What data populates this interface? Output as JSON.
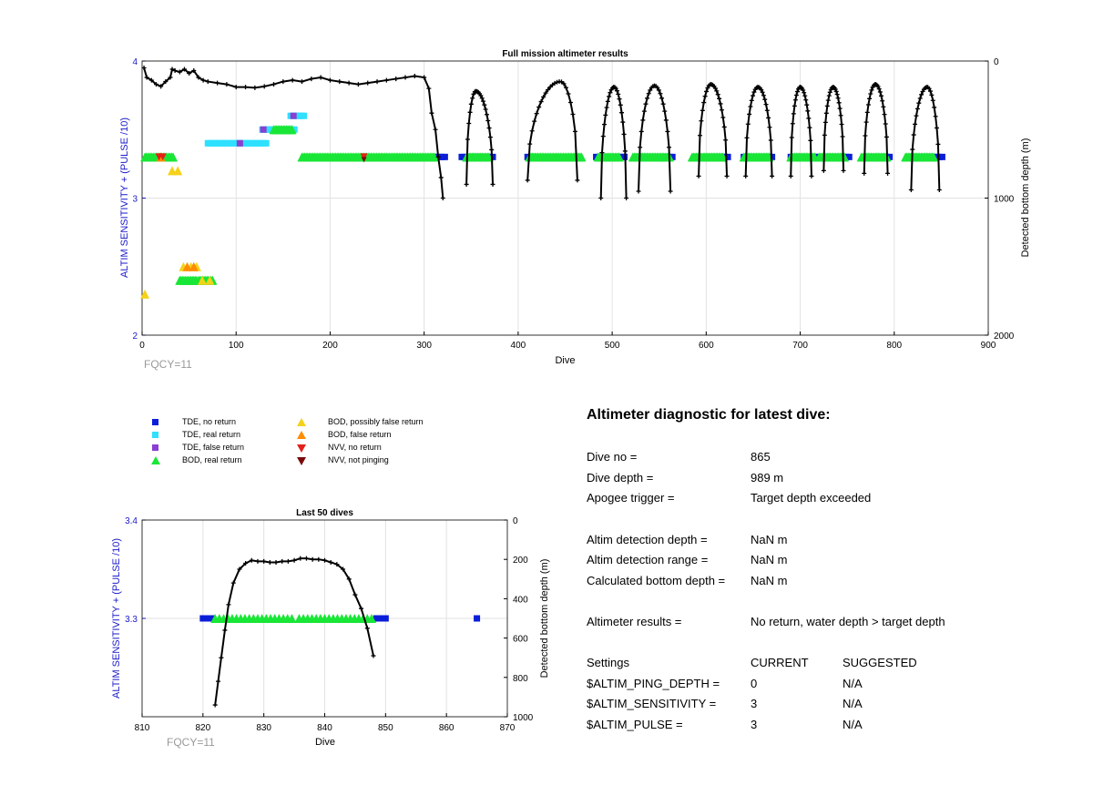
{
  "colors": {
    "tde_no_return": "#0a1ed8",
    "tde_real_return": "#2fe0ff",
    "tde_false_return": "#8a3fd1",
    "bod_real_return": "#19e636",
    "bod_possibly_false": "#f5d21a",
    "bod_false_return": "#ff8c00",
    "nvv_no_return": "#e32118",
    "nvv_not_pinging": "#7a0a0a",
    "depth_line": "#000000",
    "left_axis": "#1a1ac8"
  },
  "chart_data": [
    {
      "id": "full_mission",
      "type": "scatter",
      "title": "Full mission altimeter results",
      "xlabel": "Dive",
      "ylabel_left": "ALTIM SENSITIVITY + (PULSE /10)",
      "ylabel_right": "Detected bottom depth (m)",
      "xlim": [
        0,
        900
      ],
      "ylim_left": [
        2,
        4
      ],
      "ylim_right_reversed": [
        0,
        2000
      ],
      "xticks": [
        "0",
        "100",
        "200",
        "300",
        "400",
        "500",
        "600",
        "700",
        "800",
        "900"
      ],
      "yticks_left": [
        "2",
        "3",
        "4"
      ],
      "yticks_right": [
        "0",
        "1000",
        "2000"
      ],
      "grid": true,
      "annotation": "FQCY=11",
      "tde_no_return_ranges": [
        [
          310,
          323
        ],
        [
          340,
          373
        ],
        [
          410,
          418
        ],
        [
          483,
          514
        ],
        [
          525,
          566
        ],
        [
          590,
          623
        ],
        [
          640,
          672
        ],
        [
          690,
          720
        ],
        [
          725,
          752
        ],
        [
          768,
          796
        ],
        [
          815,
          851
        ]
      ],
      "tde_real_return_segments": [
        {
          "y": 3.4,
          "x": [
            70,
            133
          ]
        },
        {
          "y": 3.5,
          "x": [
            128,
            162
          ]
        },
        {
          "y": 3.6,
          "x": [
            158,
            172
          ]
        }
      ],
      "tde_false_return_points": [
        [
          104,
          3.4
        ],
        [
          129,
          3.5
        ],
        [
          161,
          3.6
        ]
      ],
      "bod_real_return_segments": [
        {
          "y": 3.3,
          "x": [
            3,
            33
          ]
        },
        {
          "y": 3.3,
          "x": [
            170,
            312
          ]
        },
        {
          "y": 3.3,
          "x": [
            345,
            370
          ]
        },
        {
          "y": 3.3,
          "x": [
            412,
            468
          ]
        },
        {
          "y": 3.3,
          "x": [
            485,
            508
          ]
        },
        {
          "y": 3.3,
          "x": [
            522,
            562
          ]
        },
        {
          "y": 3.3,
          "x": [
            585,
            618
          ]
        },
        {
          "y": 3.3,
          "x": [
            640,
            668
          ]
        },
        {
          "y": 3.3,
          "x": [
            690,
            716
          ]
        },
        {
          "y": 3.3,
          "x": [
            720,
            748
          ]
        },
        {
          "y": 3.3,
          "x": [
            765,
            792
          ]
        },
        {
          "y": 3.3,
          "x": [
            812,
            843
          ]
        },
        {
          "y": 3.5,
          "x": [
            140,
            160
          ]
        },
        {
          "y": 2.4,
          "x": [
            40,
            58
          ]
        },
        {
          "y": 2.4,
          "x": [
            60,
            76
          ]
        }
      ],
      "bod_possibly_false_points": [
        [
          3,
          2.3
        ],
        [
          32,
          3.2
        ],
        [
          38,
          3.2
        ],
        [
          44,
          2.5
        ],
        [
          52,
          2.5
        ],
        [
          58,
          2.5
        ],
        [
          64,
          2.4
        ],
        [
          72,
          2.4
        ]
      ],
      "bod_false_return_points": [
        [
          48,
          2.5
        ],
        [
          55,
          2.5
        ],
        [
          20,
          3.3
        ]
      ],
      "nvv_no_return_points": [
        [
          18,
          3.3
        ],
        [
          22,
          3.3
        ],
        [
          236,
          3.3
        ]
      ],
      "nvv_not_pinging_points": [
        [
          236,
          3.28
        ]
      ],
      "depth_series": {
        "name": "Detected bottom depth",
        "cruise": [
          [
            2,
            50
          ],
          [
            5,
            120
          ],
          [
            10,
            140
          ],
          [
            15,
            170
          ],
          [
            20,
            185
          ],
          [
            25,
            150
          ],
          [
            30,
            120
          ],
          [
            32,
            60
          ],
          [
            35,
            70
          ],
          [
            40,
            80
          ],
          [
            45,
            60
          ],
          [
            50,
            90
          ],
          [
            55,
            70
          ],
          [
            60,
            120
          ],
          [
            65,
            140
          ],
          [
            70,
            150
          ],
          [
            80,
            160
          ],
          [
            90,
            170
          ],
          [
            100,
            190
          ],
          [
            110,
            190
          ],
          [
            120,
            195
          ],
          [
            130,
            185
          ],
          [
            140,
            170
          ],
          [
            150,
            150
          ],
          [
            160,
            140
          ],
          [
            170,
            150
          ],
          [
            180,
            130
          ],
          [
            190,
            120
          ],
          [
            200,
            140
          ],
          [
            210,
            150
          ],
          [
            220,
            160
          ],
          [
            230,
            170
          ],
          [
            240,
            160
          ],
          [
            250,
            150
          ],
          [
            260,
            140
          ],
          [
            270,
            130
          ],
          [
            280,
            120
          ],
          [
            290,
            110
          ],
          [
            300,
            120
          ],
          [
            305,
            200
          ],
          [
            308,
            380
          ],
          [
            312,
            500
          ],
          [
            315,
            700
          ],
          [
            318,
            850
          ],
          [
            320,
            1000
          ]
        ],
        "dives": [
          {
            "start": 345,
            "peak": 355,
            "end": 373,
            "base": 900,
            "top": 220
          },
          {
            "start": 410,
            "peak": 445,
            "end": 463,
            "base": 870,
            "top": 150
          },
          {
            "start": 488,
            "peak": 502,
            "end": 515,
            "base": 1000,
            "top": 190
          },
          {
            "start": 528,
            "peak": 545,
            "end": 562,
            "base": 950,
            "top": 180
          },
          {
            "start": 592,
            "peak": 605,
            "end": 622,
            "base": 840,
            "top": 170
          },
          {
            "start": 642,
            "peak": 655,
            "end": 670,
            "base": 840,
            "top": 190
          },
          {
            "start": 690,
            "peak": 700,
            "end": 712,
            "base": 840,
            "top": 190
          },
          {
            "start": 725,
            "peak": 735,
            "end": 746,
            "base": 800,
            "top": 190
          },
          {
            "start": 768,
            "peak": 780,
            "end": 793,
            "base": 820,
            "top": 170
          },
          {
            "start": 818,
            "peak": 835,
            "end": 848,
            "base": 940,
            "top": 190
          }
        ]
      }
    },
    {
      "id": "last_50",
      "type": "scatter",
      "title": "Last 50 dives",
      "xlabel": "Dive",
      "ylabel_left": "ALTIM SENSITIVITY + (PULSE /10)",
      "ylabel_right": "Detected bottom depth (m)",
      "xlim": [
        810,
        870
      ],
      "ylim_left": [
        3.2,
        3.4
      ],
      "ylim_right_reversed": [
        0,
        1000
      ],
      "xticks": [
        "810",
        "820",
        "830",
        "840",
        "850",
        "860",
        "870"
      ],
      "yticks_left": [
        "3.4",
        "3.3"
      ],
      "yticks_left_values": [
        3.4,
        3.3
      ],
      "yticks_right": [
        "0",
        "200",
        "400",
        "600",
        "800",
        "1000"
      ],
      "grid": true,
      "annotation": "FQCY=11",
      "tde_no_return_points": [
        [
          820,
          3.3
        ],
        [
          820.5,
          3.3
        ],
        [
          821,
          3.3
        ],
        [
          821.5,
          3.3
        ],
        [
          848.5,
          3.3
        ],
        [
          849,
          3.3
        ],
        [
          849.5,
          3.3
        ],
        [
          850,
          3.3
        ],
        [
          865,
          3.3
        ]
      ],
      "bod_real_return_points": [
        [
          822,
          3.3
        ],
        [
          822.7,
          3.3
        ],
        [
          823.4,
          3.3
        ],
        [
          824.1,
          3.3
        ],
        [
          824.8,
          3.3
        ],
        [
          825.5,
          3.3
        ],
        [
          826.2,
          3.3
        ],
        [
          826.9,
          3.3
        ],
        [
          827.6,
          3.3
        ],
        [
          828.3,
          3.3
        ],
        [
          829,
          3.3
        ],
        [
          829.7,
          3.3
        ],
        [
          830.4,
          3.3
        ],
        [
          831.1,
          3.3
        ],
        [
          831.8,
          3.3
        ],
        [
          832.5,
          3.3
        ],
        [
          833.2,
          3.3
        ],
        [
          833.9,
          3.3
        ],
        [
          834.6,
          3.3
        ],
        [
          835.8,
          3.3
        ],
        [
          836.5,
          3.3
        ],
        [
          837.2,
          3.3
        ],
        [
          837.9,
          3.3
        ],
        [
          838.6,
          3.3
        ],
        [
          839.3,
          3.3
        ],
        [
          840,
          3.3
        ],
        [
          840.7,
          3.3
        ],
        [
          841.4,
          3.3
        ],
        [
          842.1,
          3.3
        ],
        [
          842.8,
          3.3
        ],
        [
          843.5,
          3.3
        ],
        [
          844.2,
          3.3
        ],
        [
          844.9,
          3.3
        ],
        [
          845.6,
          3.3
        ],
        [
          846.3,
          3.3
        ],
        [
          847,
          3.3
        ],
        [
          847.7,
          3.3
        ]
      ],
      "depth_curve": [
        [
          822,
          940
        ],
        [
          822.5,
          820
        ],
        [
          823,
          700
        ],
        [
          823.6,
          560
        ],
        [
          824.2,
          430
        ],
        [
          825,
          320
        ],
        [
          826,
          250
        ],
        [
          827,
          220
        ],
        [
          828,
          205
        ],
        [
          829,
          210
        ],
        [
          830,
          210
        ],
        [
          831,
          215
        ],
        [
          832,
          215
        ],
        [
          833,
          210
        ],
        [
          834,
          210
        ],
        [
          835,
          205
        ],
        [
          836,
          195
        ],
        [
          837,
          195
        ],
        [
          838,
          200
        ],
        [
          839,
          200
        ],
        [
          840,
          205
        ],
        [
          841,
          215
        ],
        [
          842,
          225
        ],
        [
          843,
          250
        ],
        [
          844,
          300
        ],
        [
          845,
          380
        ],
        [
          846,
          450
        ],
        [
          847,
          550
        ],
        [
          848,
          690
        ]
      ]
    }
  ],
  "legend": [
    {
      "key": "tde_no_return",
      "label": "TDE, no return",
      "marker": "square"
    },
    {
      "key": "tde_real_return",
      "label": "TDE, real return",
      "marker": "square"
    },
    {
      "key": "tde_false_return",
      "label": "TDE, false return",
      "marker": "square"
    },
    {
      "key": "bod_real_return",
      "label": "BOD, real return",
      "marker": "triangle-up"
    },
    {
      "key": "bod_possibly_false",
      "label": "BOD, possibly false return",
      "marker": "triangle-up"
    },
    {
      "key": "bod_false_return",
      "label": "BOD, false return",
      "marker": "triangle-up"
    },
    {
      "key": "nvv_no_return",
      "label": "NVV, no return",
      "marker": "triangle-down"
    },
    {
      "key": "nvv_not_pinging",
      "label": "NVV, not pinging",
      "marker": "triangle-down"
    }
  ],
  "diagnostic": {
    "title": "Altimeter diagnostic for latest dive:",
    "rows": [
      {
        "label": "Dive no =",
        "value": "865"
      },
      {
        "label": "Dive depth =",
        "value": "989 m"
      },
      {
        "label": "Apogee trigger =",
        "value": "Target depth exceeded"
      },
      {
        "label": "Altim detection depth =",
        "value": "NaN m"
      },
      {
        "label": "Altim detection range =",
        "value": "NaN m"
      },
      {
        "label": "Calculated bottom depth =",
        "value": "NaN m"
      },
      {
        "label": "Altimeter results =",
        "value": "No return, water depth > target depth"
      }
    ],
    "settings_header": {
      "label": "Settings",
      "current": "CURRENT",
      "suggested": "SUGGESTED"
    },
    "settings": [
      {
        "label": "$ALTIM_PING_DEPTH =",
        "current": "0",
        "suggested": "N/A"
      },
      {
        "label": "$ALTIM_SENSITIVITY =",
        "current": "3",
        "suggested": "N/A"
      },
      {
        "label": "$ALTIM_PULSE =",
        "current": "3",
        "suggested": "N/A"
      }
    ]
  }
}
